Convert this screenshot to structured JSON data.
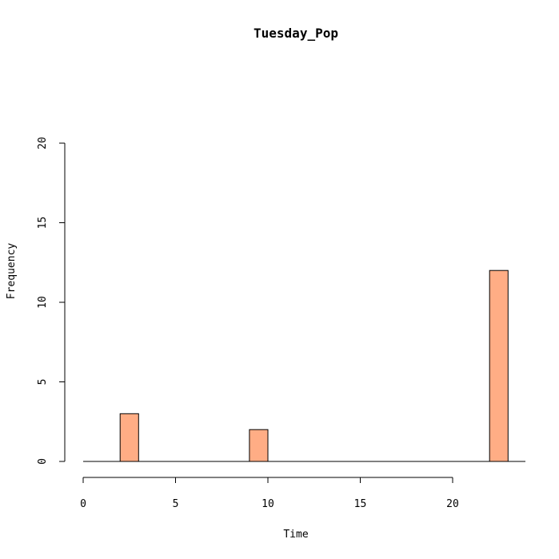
{
  "chart_data": {
    "type": "bar",
    "title": "Tuesday_Pop",
    "xlabel": "Time",
    "ylabel": "Frequency",
    "xlim": [
      0,
      24
    ],
    "ylim": [
      0,
      20
    ],
    "x_ticks": [
      0,
      5,
      10,
      15,
      20
    ],
    "y_ticks": [
      0,
      5,
      10,
      15,
      20
    ],
    "bin_width": 1,
    "bins": [
      {
        "x0": 0,
        "x1": 1,
        "count": 0
      },
      {
        "x0": 1,
        "x1": 2,
        "count": 0
      },
      {
        "x0": 2,
        "x1": 3,
        "count": 3
      },
      {
        "x0": 3,
        "x1": 4,
        "count": 0
      },
      {
        "x0": 4,
        "x1": 5,
        "count": 0
      },
      {
        "x0": 5,
        "x1": 6,
        "count": 0
      },
      {
        "x0": 6,
        "x1": 7,
        "count": 0
      },
      {
        "x0": 7,
        "x1": 8,
        "count": 0
      },
      {
        "x0": 8,
        "x1": 9,
        "count": 0
      },
      {
        "x0": 9,
        "x1": 10,
        "count": 2
      },
      {
        "x0": 10,
        "x1": 11,
        "count": 0
      },
      {
        "x0": 11,
        "x1": 12,
        "count": 0
      },
      {
        "x0": 12,
        "x1": 13,
        "count": 0
      },
      {
        "x0": 13,
        "x1": 14,
        "count": 0
      },
      {
        "x0": 14,
        "x1": 15,
        "count": 0
      },
      {
        "x0": 15,
        "x1": 16,
        "count": 0
      },
      {
        "x0": 16,
        "x1": 17,
        "count": 0
      },
      {
        "x0": 17,
        "x1": 18,
        "count": 0
      },
      {
        "x0": 18,
        "x1": 19,
        "count": 0
      },
      {
        "x0": 19,
        "x1": 20,
        "count": 0
      },
      {
        "x0": 20,
        "x1": 21,
        "count": 0
      },
      {
        "x0": 21,
        "x1": 22,
        "count": 0
      },
      {
        "x0": 22,
        "x1": 23,
        "count": 12
      }
    ],
    "bar_color": "#FFAD85",
    "grid": false,
    "legend": "none"
  }
}
